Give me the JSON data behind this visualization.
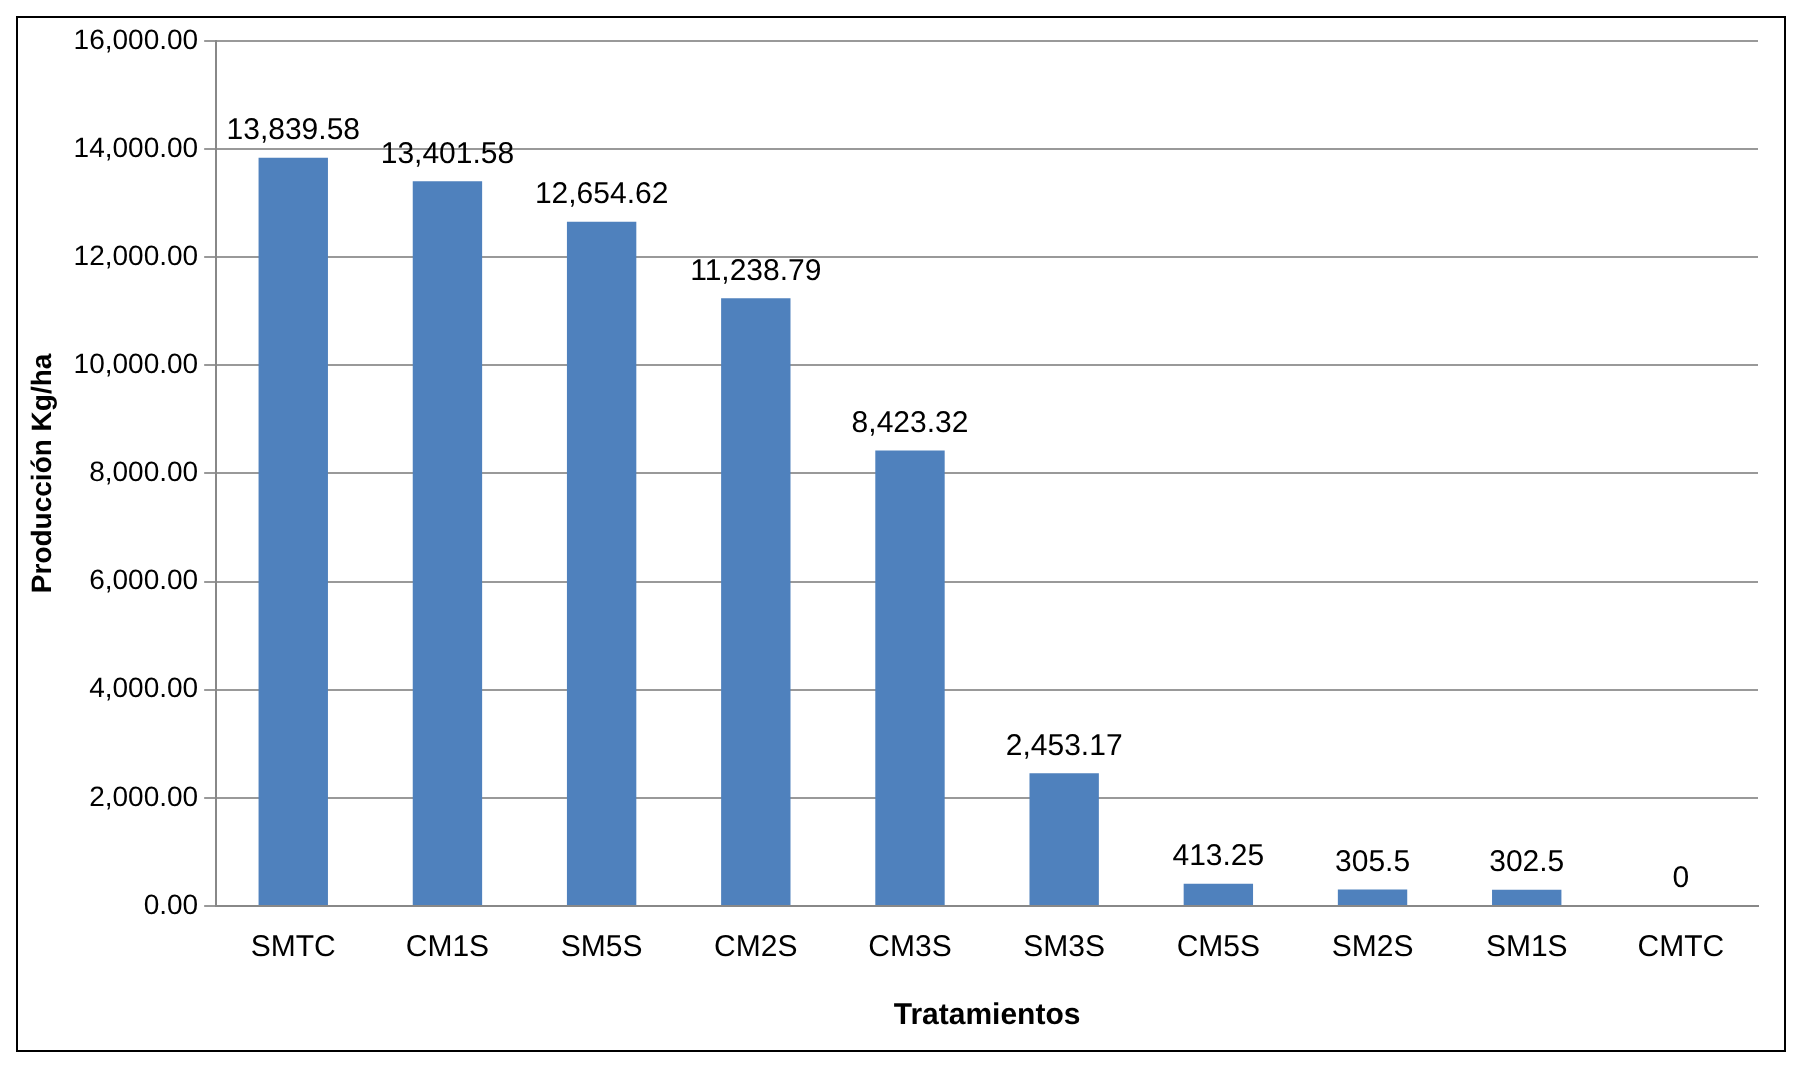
{
  "chart_data": {
    "type": "bar",
    "xlabel": "Tratamientos",
    "ylabel": "Producción Kg/ha",
    "categories": [
      "SMTC",
      "CM1S",
      "SM5S",
      "CM2S",
      "CM3S",
      "SM3S",
      "CM5S",
      "SM2S",
      "SM1S",
      "CMTC"
    ],
    "values": [
      13839.58,
      13401.58,
      12654.62,
      11238.79,
      8423.32,
      2453.17,
      413.25,
      305.5,
      302.5,
      0
    ],
    "value_labels": [
      "13,839.58",
      "13,401.58",
      "12,654.62",
      "11,238.79",
      "8,423.32",
      "2,453.17",
      "413.25",
      "305.5",
      "302.5",
      "0"
    ],
    "color": "#4f81bd",
    "ylim": [
      0,
      16000
    ],
    "yticks": [
      {
        "value": 0,
        "label": "0.00"
      },
      {
        "value": 2000,
        "label": "2,000.00"
      },
      {
        "value": 4000,
        "label": "4,000.00"
      },
      {
        "value": 6000,
        "label": "6,000.00"
      },
      {
        "value": 8000,
        "label": "8,000.00"
      },
      {
        "value": 10000,
        "label": "10,000.00"
      },
      {
        "value": 12000,
        "label": "12,000.00"
      },
      {
        "value": 14000,
        "label": "14,000.00"
      },
      {
        "value": 16000,
        "label": "16,000.00"
      }
    ],
    "grid": "y",
    "legend": false
  }
}
